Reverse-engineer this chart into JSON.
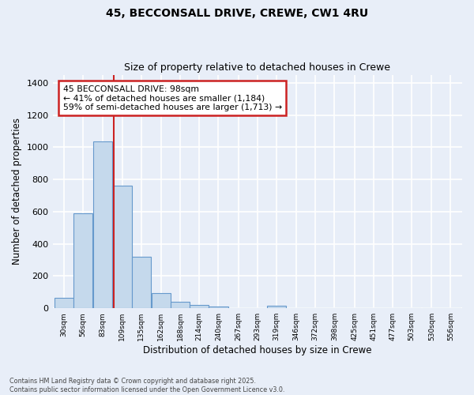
{
  "title_line1": "45, BECCONSALL DRIVE, CREWE, CW1 4RU",
  "title_line2": "Size of property relative to detached houses in Crewe",
  "xlabel": "Distribution of detached houses by size in Crewe",
  "ylabel": "Number of detached properties",
  "bar_labels": [
    "30sqm",
    "56sqm",
    "83sqm",
    "109sqm",
    "135sqm",
    "162sqm",
    "188sqm",
    "214sqm",
    "240sqm",
    "267sqm",
    "293sqm",
    "319sqm",
    "346sqm",
    "372sqm",
    "398sqm",
    "425sqm",
    "451sqm",
    "477sqm",
    "503sqm",
    "530sqm",
    "556sqm"
  ],
  "bar_values": [
    65,
    590,
    1035,
    760,
    320,
    95,
    38,
    23,
    13,
    0,
    0,
    15,
    0,
    0,
    0,
    0,
    0,
    0,
    0,
    0,
    0
  ],
  "bar_color": "#c5d9ec",
  "bar_edge_color": "#6699cc",
  "bg_color": "#e8eef8",
  "grid_color": "#ffffff",
  "property_line_x": 98,
  "property_line_color": "#cc2222",
  "annotation_text": "45 BECCONSALL DRIVE: 98sqm\n← 41% of detached houses are smaller (1,184)\n59% of semi-detached houses are larger (1,713) →",
  "annotation_box_color": "#ffffff",
  "annotation_box_edge": "#cc2222",
  "ylim": [
    0,
    1450
  ],
  "bin_width": 26,
  "footnote": "Contains HM Land Registry data © Crown copyright and database right 2025.\nContains public sector information licensed under the Open Government Licence v3.0."
}
